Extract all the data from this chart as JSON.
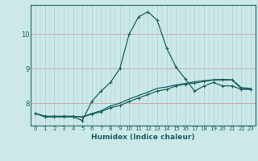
{
  "title": "",
  "xlabel": "Humidex (Indice chaleur)",
  "bg_color": "#cce8e8",
  "grid_color": "#aad4d4",
  "line_color": "#1a6060",
  "red_grid_color": "#d4a0a0",
  "xlim": [
    -0.5,
    23.5
  ],
  "ylim": [
    7.35,
    10.85
  ],
  "yticks": [
    8,
    9,
    10
  ],
  "xticks": [
    0,
    1,
    2,
    3,
    4,
    5,
    6,
    7,
    8,
    9,
    10,
    11,
    12,
    13,
    14,
    15,
    16,
    17,
    18,
    19,
    20,
    21,
    22,
    23
  ],
  "line1_x": [
    0,
    1,
    2,
    3,
    4,
    5,
    6,
    7,
    8,
    9,
    10,
    11,
    12,
    13,
    14,
    15,
    16,
    17,
    18,
    19,
    20,
    21,
    22,
    23
  ],
  "line1_y": [
    7.7,
    7.6,
    7.6,
    7.6,
    7.6,
    7.5,
    8.05,
    8.35,
    8.6,
    9.0,
    10.0,
    10.5,
    10.65,
    10.4,
    9.6,
    9.05,
    8.7,
    8.35,
    8.5,
    8.6,
    8.5,
    8.5,
    8.4,
    8.4
  ],
  "line2_x": [
    0,
    1,
    2,
    3,
    4,
    5,
    6,
    7,
    8,
    9,
    10,
    11,
    12,
    13,
    14,
    15,
    16,
    17,
    18,
    19,
    20,
    21,
    22,
    23
  ],
  "line2_y": [
    7.7,
    7.62,
    7.62,
    7.62,
    7.62,
    7.6,
    7.68,
    7.75,
    7.87,
    7.93,
    8.05,
    8.15,
    8.25,
    8.35,
    8.4,
    8.5,
    8.55,
    8.58,
    8.63,
    8.67,
    8.67,
    8.67,
    8.42,
    8.4
  ],
  "line3_x": [
    0,
    1,
    2,
    3,
    4,
    5,
    6,
    7,
    8,
    9,
    10,
    11,
    12,
    13,
    14,
    15,
    16,
    17,
    18,
    19,
    20,
    21,
    22,
    23
  ],
  "line3_y": [
    7.7,
    7.62,
    7.62,
    7.62,
    7.62,
    7.6,
    7.7,
    7.78,
    7.92,
    8.0,
    8.12,
    8.22,
    8.32,
    8.43,
    8.47,
    8.53,
    8.57,
    8.62,
    8.65,
    8.68,
    8.69,
    8.68,
    8.45,
    8.43
  ]
}
